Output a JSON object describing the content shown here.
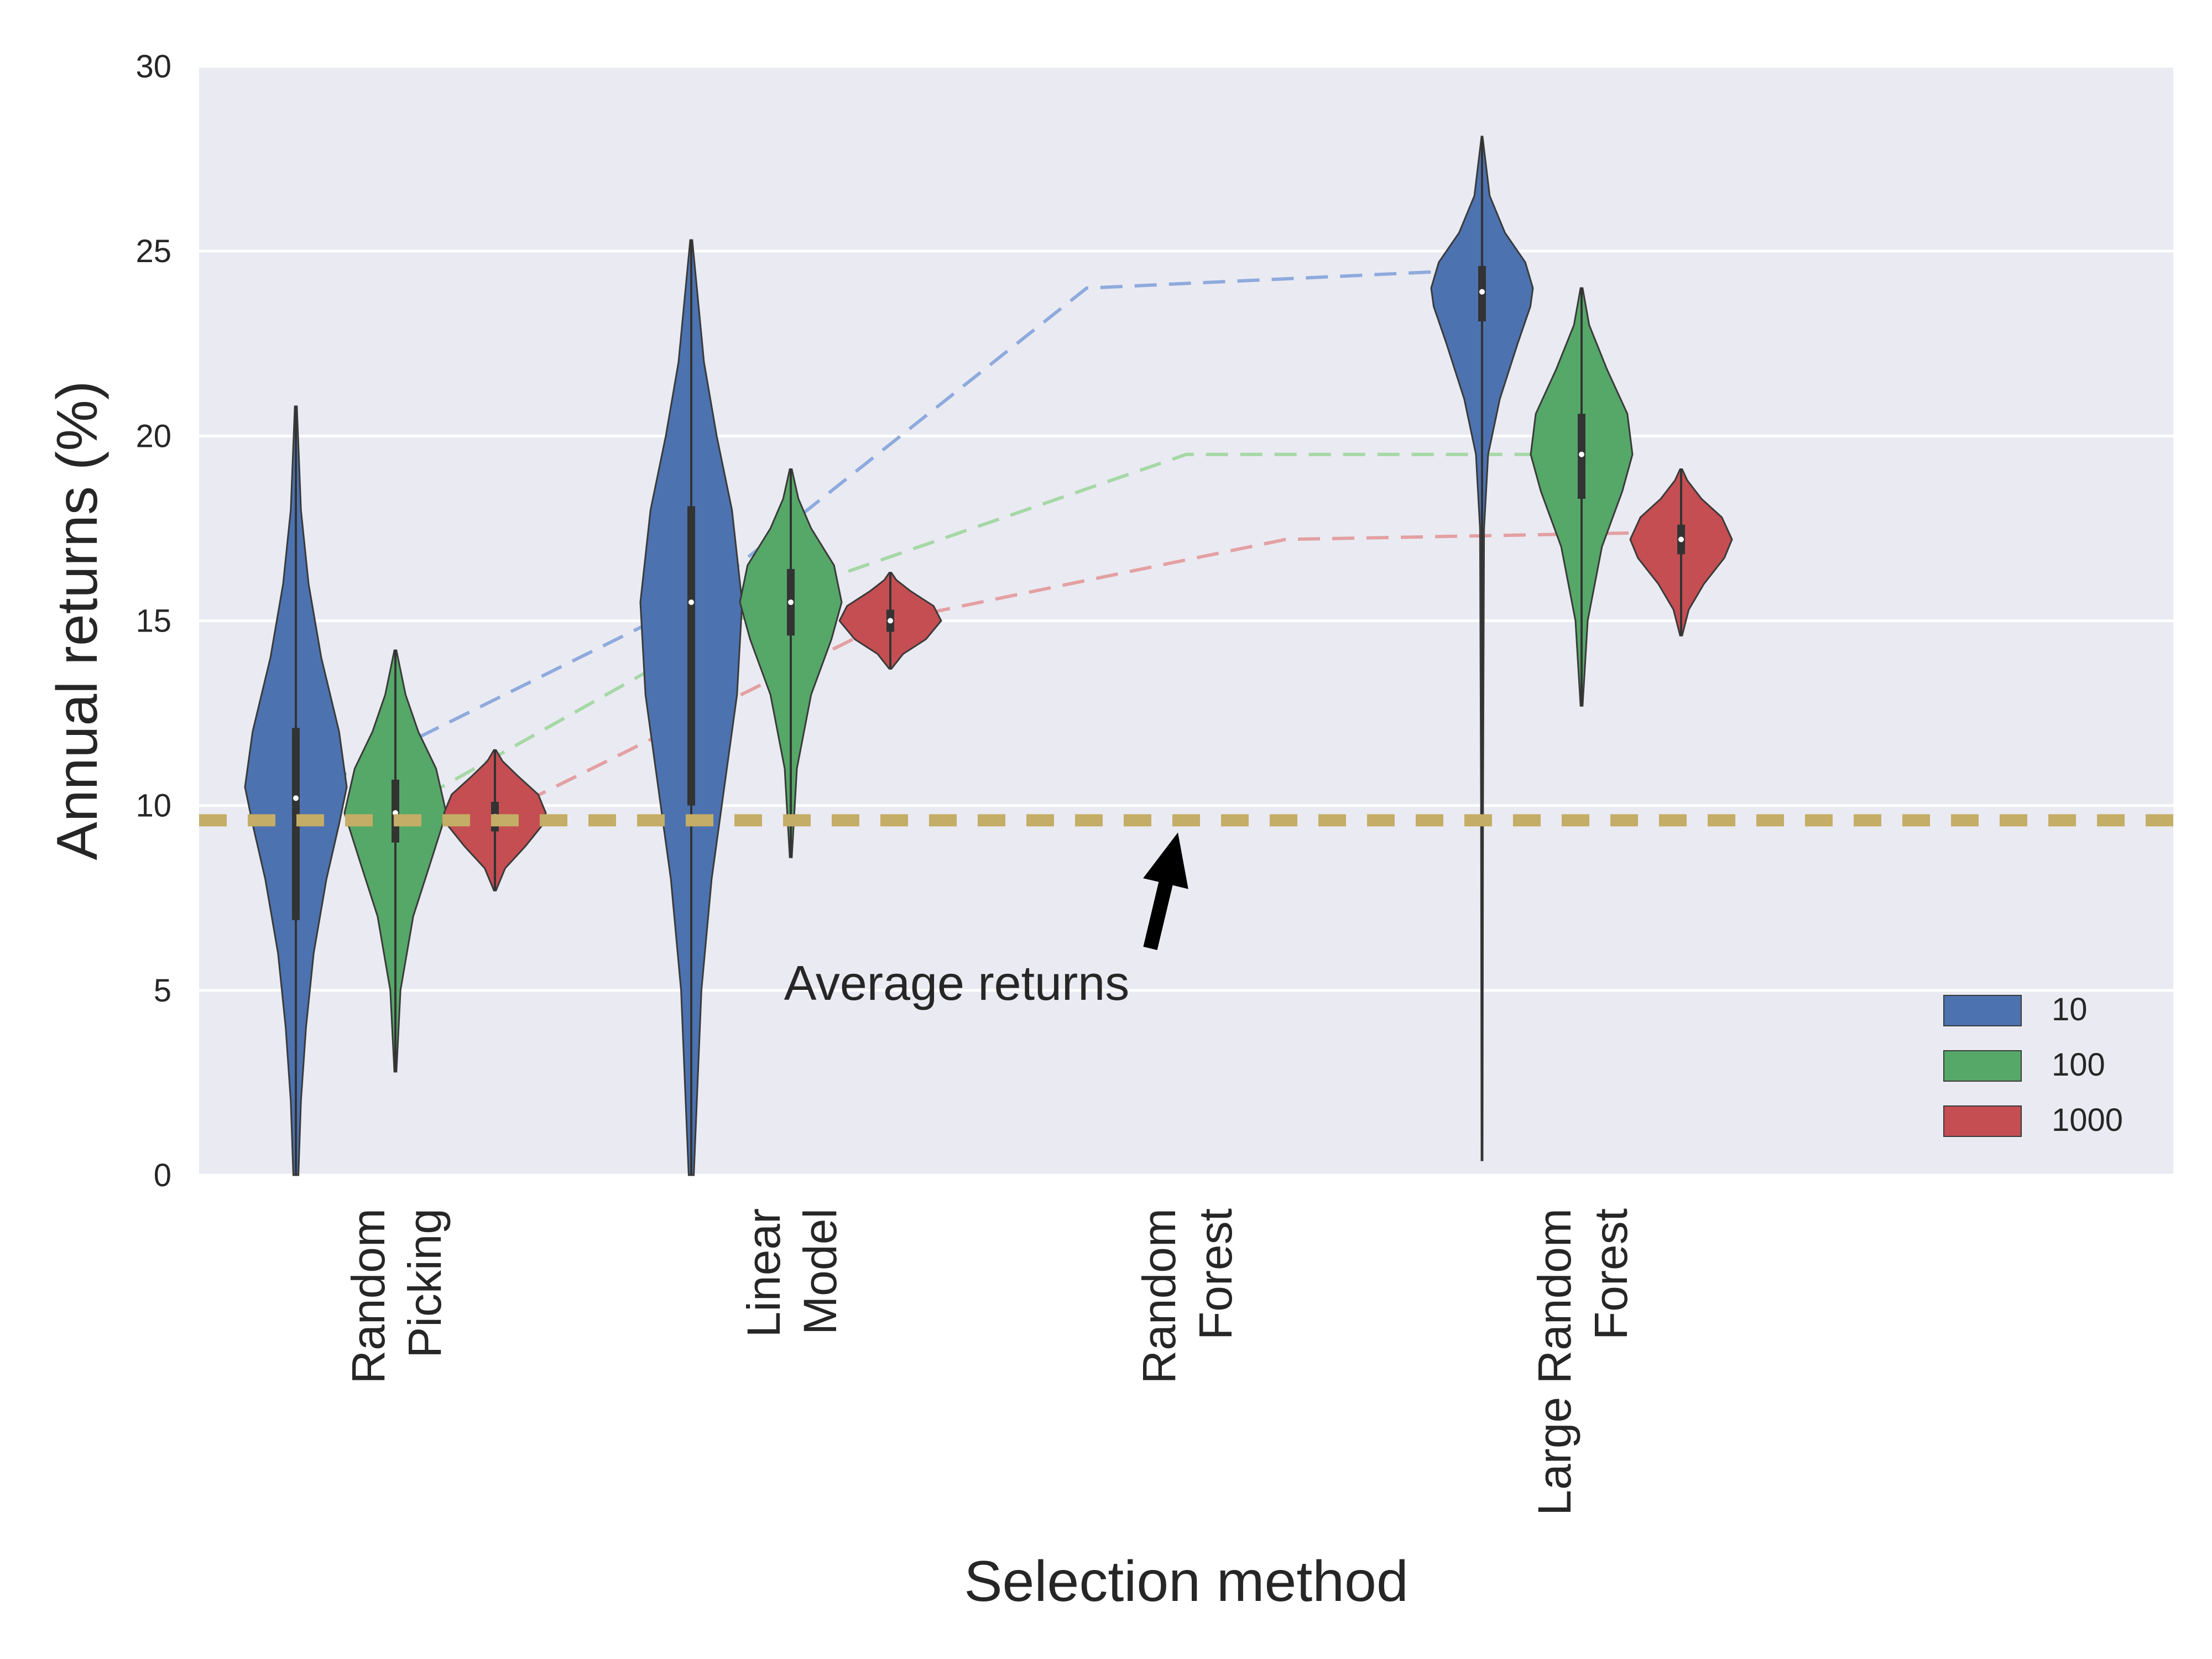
{
  "chart_data": {
    "type": "violin",
    "xlabel": "Selection method",
    "ylabel": "Annual returns (%)",
    "ylim": [
      0,
      30
    ],
    "yticks": [
      0,
      5,
      10,
      15,
      20,
      25,
      30
    ],
    "grid": true,
    "legend_position": "lower-right",
    "categories": [
      [
        "Random",
        "Picking"
      ],
      [
        "Linear",
        "Model"
      ],
      [
        "Random",
        "Forest"
      ],
      [
        "Large Random",
        "Forest"
      ]
    ],
    "series": [
      {
        "name": "10",
        "color": "#4c72b0",
        "line_color": "#8eaadd",
        "violins": [
          {
            "category": 0,
            "min": 0.0,
            "max": 20.8,
            "q1": 6.9,
            "median": 10.2,
            "q3": 12.1,
            "profile": [
              [
                0.0,
                0.05
              ],
              [
                2,
                0.1
              ],
              [
                4,
                0.2
              ],
              [
                6,
                0.35
              ],
              [
                8,
                0.6
              ],
              [
                9.5,
                0.85
              ],
              [
                10.5,
                1.0
              ],
              [
                12,
                0.85
              ],
              [
                14,
                0.5
              ],
              [
                16,
                0.25
              ],
              [
                18,
                0.1
              ],
              [
                20.8,
                0.02
              ]
            ]
          },
          {
            "category": 1,
            "min": 0.0,
            "max": 25.3,
            "q1": 10.0,
            "median": 15.5,
            "q3": 18.1,
            "profile": [
              [
                0.0,
                0.05
              ],
              [
                5,
                0.2
              ],
              [
                8,
                0.4
              ],
              [
                11,
                0.7
              ],
              [
                13,
                0.9
              ],
              [
                15.5,
                1.0
              ],
              [
                18,
                0.8
              ],
              [
                20,
                0.5
              ],
              [
                22,
                0.25
              ],
              [
                25.3,
                0.02
              ]
            ]
          },
          {
            "category": 3,
            "min": 0.4,
            "max": 28.1,
            "q1": 23.1,
            "median": 23.9,
            "q3": 24.6,
            "profile": [
              [
                0.4,
                0.01
              ],
              [
                10,
                0.02
              ],
              [
                17.5,
                0.04
              ],
              [
                19.5,
                0.12
              ],
              [
                21,
                0.35
              ],
              [
                22.5,
                0.7
              ],
              [
                23.5,
                0.95
              ],
              [
                24,
                1.0
              ],
              [
                24.7,
                0.85
              ],
              [
                25.5,
                0.45
              ],
              [
                26.5,
                0.15
              ],
              [
                28.1,
                0.01
              ]
            ]
          }
        ],
        "mean_line": [
          [
            0,
            10.2
          ],
          [
            1,
            15.5
          ],
          [
            2,
            24.0
          ],
          [
            3,
            24.5
          ]
        ]
      },
      {
        "name": "100",
        "color": "#55a868",
        "line_color": "#a5d8a5",
        "violins": [
          {
            "category": 0,
            "min": 2.8,
            "max": 14.2,
            "q1": 9.0,
            "median": 9.8,
            "q3": 10.7,
            "profile": [
              [
                2.8,
                0.02
              ],
              [
                5,
                0.1
              ],
              [
                7,
                0.35
              ],
              [
                8.5,
                0.7
              ],
              [
                9.8,
                1.0
              ],
              [
                11,
                0.8
              ],
              [
                12,
                0.45
              ],
              [
                13,
                0.2
              ],
              [
                14.2,
                0.02
              ]
            ]
          },
          {
            "category": 1,
            "min": 8.6,
            "max": 19.1,
            "q1": 14.6,
            "median": 15.5,
            "q3": 16.4,
            "profile": [
              [
                8.6,
                0.02
              ],
              [
                11,
                0.12
              ],
              [
                13,
                0.4
              ],
              [
                14.5,
                0.8
              ],
              [
                15.5,
                1.0
              ],
              [
                16.5,
                0.85
              ],
              [
                17.5,
                0.4
              ],
              [
                18.3,
                0.15
              ],
              [
                19.1,
                0.02
              ]
            ]
          },
          {
            "category": 3,
            "min": 12.7,
            "max": 24.0,
            "q1": 18.3,
            "median": 19.5,
            "q3": 20.6,
            "profile": [
              [
                12.7,
                0.02
              ],
              [
                15,
                0.12
              ],
              [
                17,
                0.4
              ],
              [
                18.5,
                0.8
              ],
              [
                19.5,
                1.0
              ],
              [
                20.6,
                0.9
              ],
              [
                21.8,
                0.5
              ],
              [
                23,
                0.15
              ],
              [
                24,
                0.02
              ]
            ]
          }
        ],
        "mean_line": [
          [
            0,
            9.8
          ],
          [
            1,
            15.8
          ],
          [
            2,
            19.5
          ],
          [
            3,
            19.5
          ]
        ]
      },
      {
        "name": "1000",
        "color": "#c44e52",
        "line_color": "#e3a0a2",
        "violins": [
          {
            "category": 0,
            "min": 7.7,
            "max": 11.5,
            "q1": 9.3,
            "median": 9.7,
            "q3": 10.1,
            "profile": [
              [
                7.7,
                0.02
              ],
              [
                8.3,
                0.2
              ],
              [
                8.9,
                0.6
              ],
              [
                9.5,
                0.95
              ],
              [
                9.8,
                1.0
              ],
              [
                10.3,
                0.85
              ],
              [
                10.8,
                0.45
              ],
              [
                11.2,
                0.15
              ],
              [
                11.5,
                0.02
              ]
            ]
          },
          {
            "category": 1,
            "min": 13.7,
            "max": 16.3,
            "q1": 14.7,
            "median": 15.0,
            "q3": 15.3,
            "profile": [
              [
                13.7,
                0.02
              ],
              [
                14.1,
                0.25
              ],
              [
                14.5,
                0.7
              ],
              [
                15.0,
                1.0
              ],
              [
                15.4,
                0.85
              ],
              [
                15.8,
                0.4
              ],
              [
                16.1,
                0.12
              ],
              [
                16.3,
                0.02
              ]
            ]
          },
          {
            "category": 3,
            "min": 14.6,
            "max": 19.1,
            "q1": 16.8,
            "median": 17.2,
            "q3": 17.6,
            "profile": [
              [
                14.6,
                0.02
              ],
              [
                15.3,
                0.15
              ],
              [
                16.0,
                0.45
              ],
              [
                16.7,
                0.85
              ],
              [
                17.2,
                1.0
              ],
              [
                17.8,
                0.8
              ],
              [
                18.3,
                0.4
              ],
              [
                18.8,
                0.12
              ],
              [
                19.1,
                0.02
              ]
            ]
          }
        ],
        "mean_line": [
          [
            0,
            9.7
          ],
          [
            1,
            15.0
          ],
          [
            2,
            17.2
          ],
          [
            3,
            17.4
          ]
        ]
      }
    ],
    "reference_line": {
      "y": 9.6,
      "color": "#c4ad66"
    },
    "annotation": {
      "text": "Average returns",
      "xy": [
        2.0,
        9.6
      ],
      "xytext": [
        1.5,
        4.8
      ]
    }
  }
}
